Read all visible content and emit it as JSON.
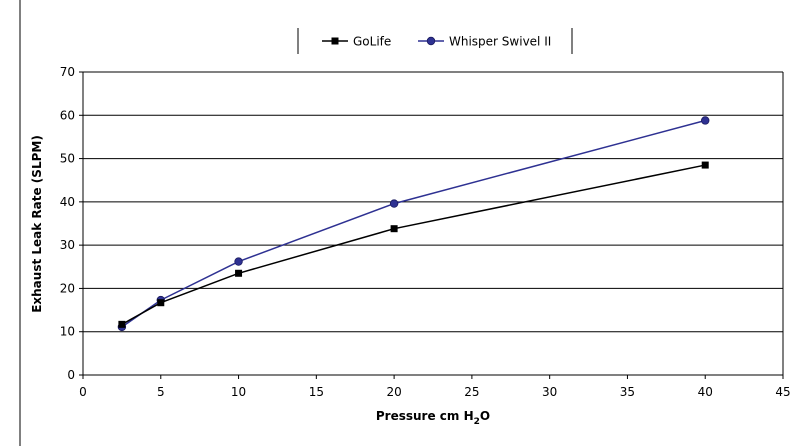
{
  "chart_data": {
    "type": "line",
    "xlabel": "Pressure cm H",
    "xlabel_sub": "2",
    "xlabel_end": "O",
    "ylabel": "Exhaust Leak Rate (SLPM)",
    "xlim": [
      0,
      45
    ],
    "ylim": [
      0,
      70
    ],
    "xticks": [
      0,
      5,
      10,
      15,
      20,
      25,
      30,
      35,
      40,
      45
    ],
    "yticks": [
      0,
      10,
      20,
      30,
      40,
      50,
      60,
      70
    ],
    "grid": "horizontal",
    "legend_position": "top-center",
    "series": [
      {
        "name": "GoLife",
        "marker": "square",
        "color": "#000000",
        "x": [
          2.5,
          5,
          10,
          20,
          40
        ],
        "y": [
          11.7,
          16.7,
          23.5,
          33.8,
          48.5
        ]
      },
      {
        "name": "Whisper Swivel II",
        "marker": "circle",
        "color": "#2e3192",
        "x": [
          2.5,
          5,
          10,
          20,
          40
        ],
        "y": [
          11.1,
          17.3,
          26.2,
          39.6,
          58.8
        ]
      }
    ]
  }
}
